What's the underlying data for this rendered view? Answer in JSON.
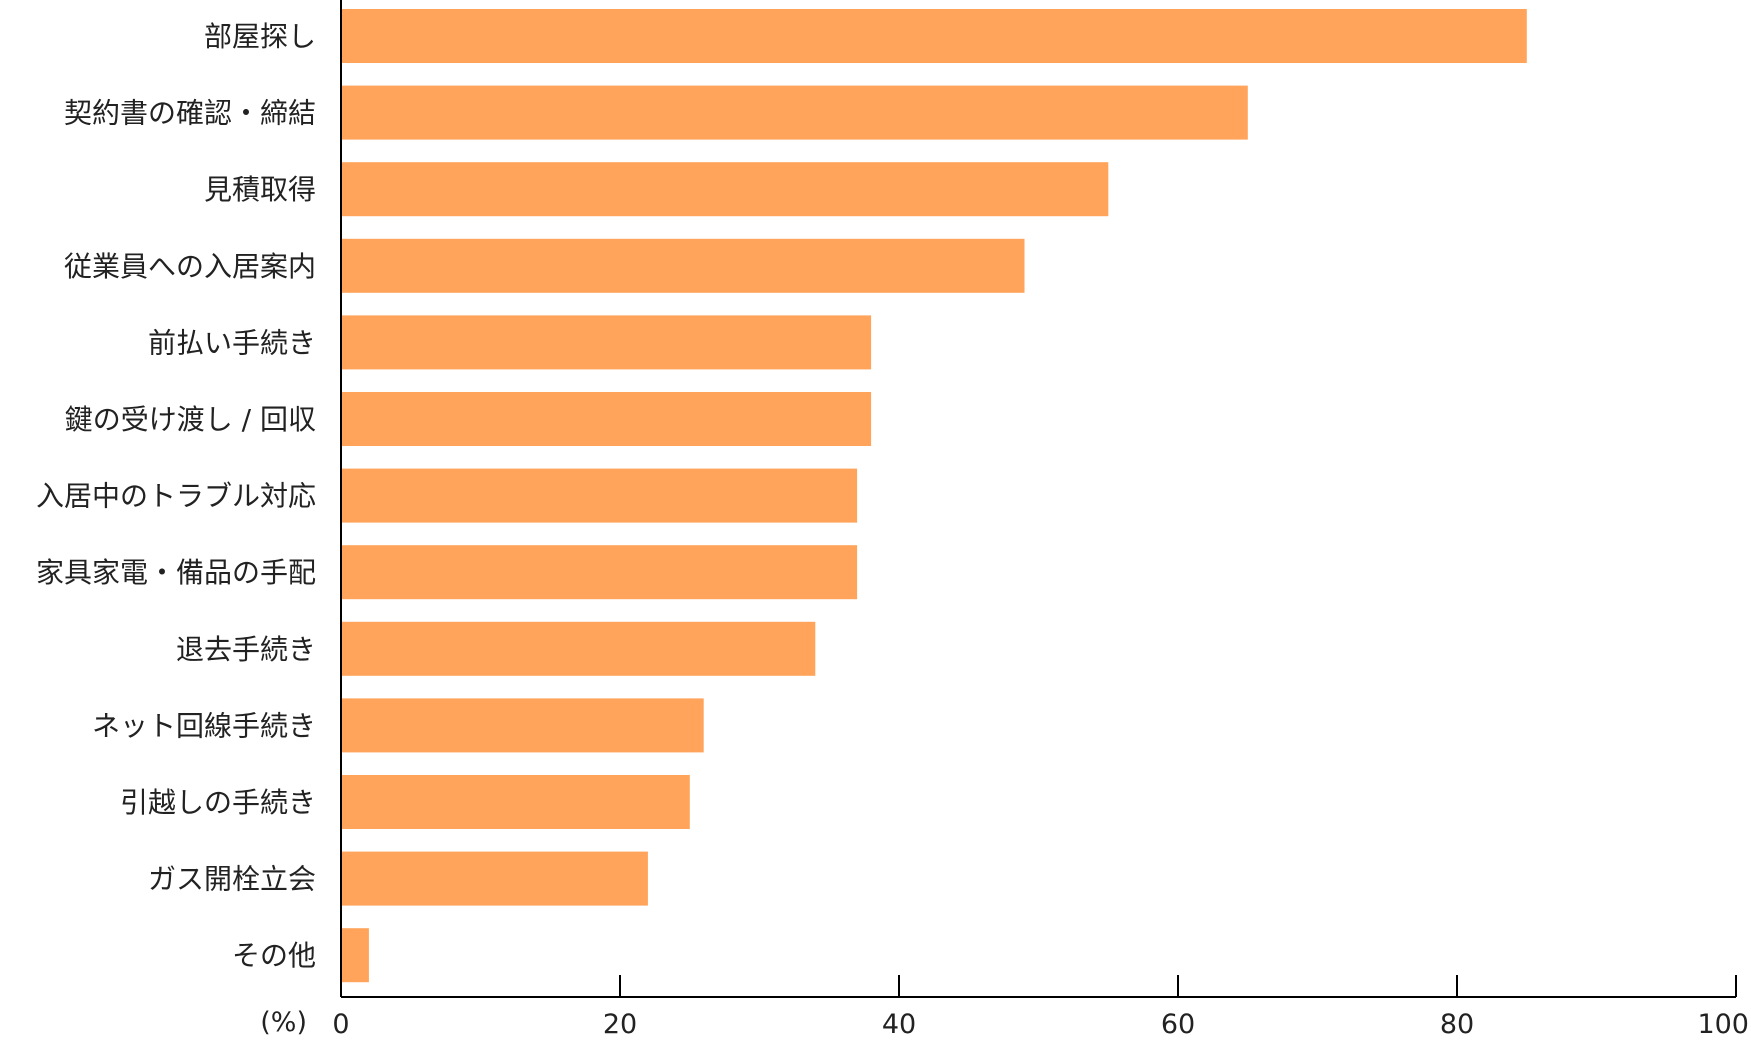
{
  "chart_data": {
    "type": "bar",
    "orientation": "horizontal",
    "title": "",
    "xlabel": "",
    "ylabel": "",
    "unit_label": "(%)",
    "xlim": [
      0,
      100
    ],
    "xticks": [
      0,
      20,
      40,
      60,
      80,
      100
    ],
    "grid": false,
    "legend": "none",
    "bar_color": "#FFA45A",
    "categories": [
      "部屋探し",
      "契約書の確認・締結",
      "見積取得",
      "従業員への入居案内",
      "前払い手続き",
      "鍵の受け渡し / 回収",
      "入居中のトラブル対応",
      "家具家電・備品の手配",
      "退去手続き",
      "ネット回線手続き",
      "引越しの手続き",
      "ガス開栓立会",
      "その他"
    ],
    "values": [
      85,
      65,
      55,
      49,
      38,
      38,
      37,
      37,
      34,
      26,
      25,
      22,
      2
    ]
  }
}
